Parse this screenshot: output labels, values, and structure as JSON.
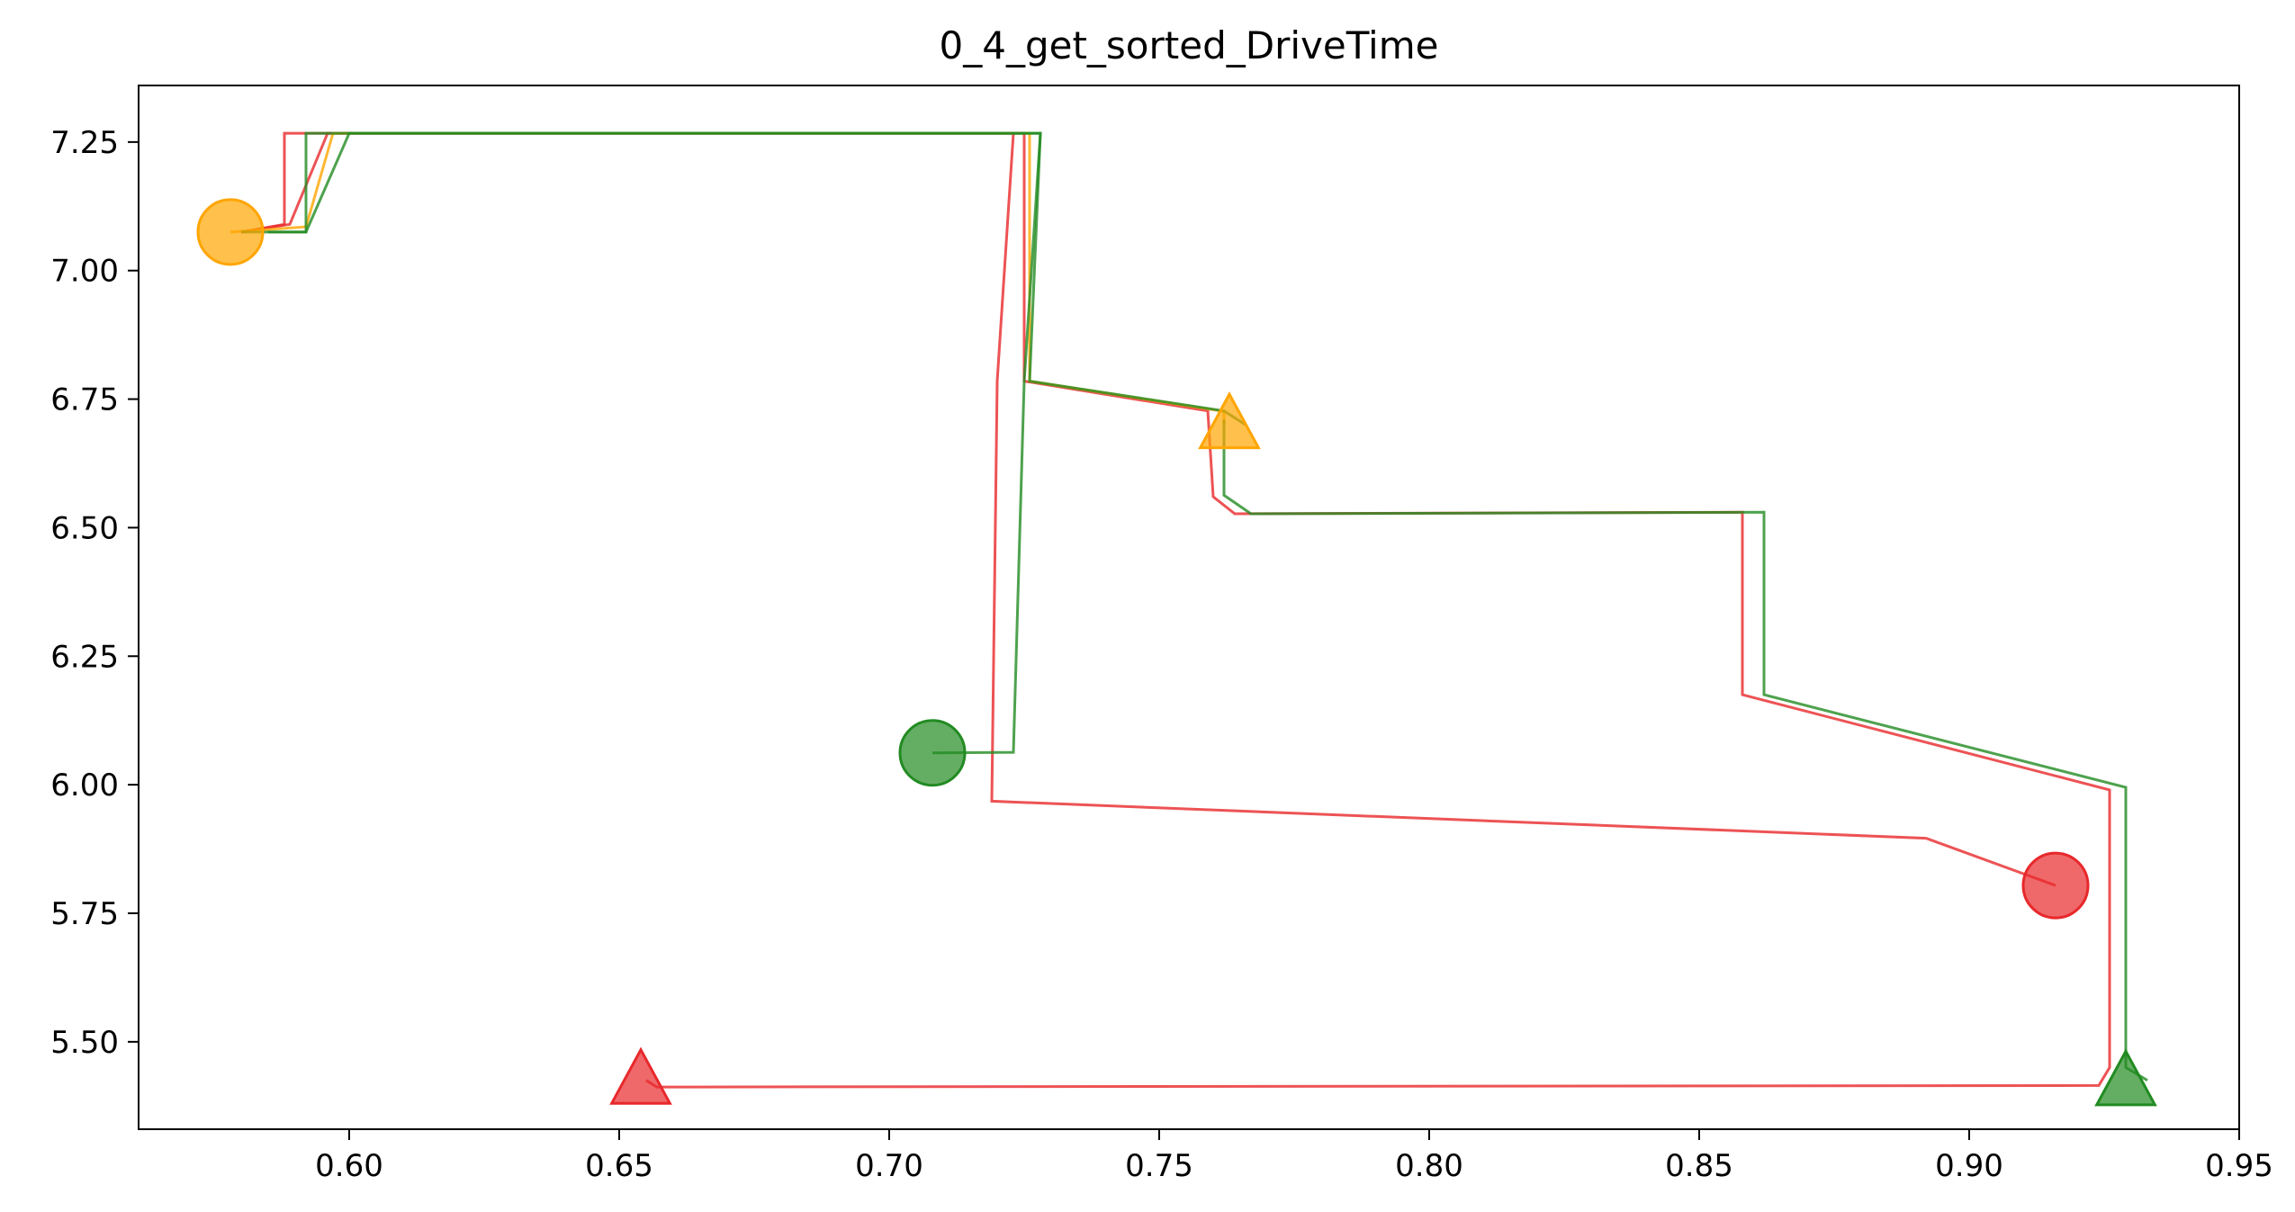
{
  "chart_data": {
    "type": "line",
    "title": "0_4_get_sorted_DriveTime",
    "xlabel": "",
    "ylabel": "",
    "xlim": [
      0.561,
      0.95
    ],
    "ylim": [
      5.33,
      7.36
    ],
    "grid": false,
    "legend": "none",
    "x_ticks": [
      0.6,
      0.65,
      0.7,
      0.75,
      0.8,
      0.85,
      0.9,
      0.95
    ],
    "x_tick_labels": [
      "0.60",
      "0.65",
      "0.70",
      "0.75",
      "0.80",
      "0.85",
      "0.90",
      "0.95"
    ],
    "y_ticks": [
      5.5,
      5.75,
      6.0,
      6.25,
      6.5,
      6.75,
      7.0,
      7.25
    ],
    "y_tick_labels": [
      "5.50",
      "5.75",
      "6.00",
      "6.25",
      "6.50",
      "6.75",
      "7.00",
      "7.25"
    ],
    "series": [
      {
        "color": "#e8282b",
        "points": [
          [
            0.916,
            5.804
          ],
          [
            0.892,
            5.896
          ],
          [
            0.719,
            5.968
          ],
          [
            0.72,
            6.785
          ],
          [
            0.723,
            7.267
          ],
          [
            0.588,
            7.267
          ],
          [
            0.588,
            7.09
          ],
          [
            0.58,
            7.075
          ]
        ]
      },
      {
        "color": "#e8282b",
        "points": [
          [
            0.58,
            7.075
          ],
          [
            0.589,
            7.09
          ],
          [
            0.596,
            7.267
          ],
          [
            0.725,
            7.267
          ],
          [
            0.725,
            6.785
          ],
          [
            0.759,
            6.727
          ],
          [
            0.76,
            6.56
          ],
          [
            0.764,
            6.527
          ],
          [
            0.858,
            6.53
          ],
          [
            0.858,
            6.175
          ],
          [
            0.926,
            5.99
          ],
          [
            0.926,
            5.45
          ],
          [
            0.924,
            5.415
          ],
          [
            0.657,
            5.412
          ],
          [
            0.655,
            5.425
          ]
        ]
      },
      {
        "color": "#ffa500",
        "points": [
          [
            0.578,
            7.075
          ],
          [
            0.592,
            7.085
          ],
          [
            0.597,
            7.267
          ],
          [
            0.726,
            7.267
          ],
          [
            0.726,
            6.785
          ],
          [
            0.762,
            6.726
          ],
          [
            0.762,
            6.7
          ]
        ]
      },
      {
        "color": "#228b22",
        "points": [
          [
            0.708,
            6.062
          ],
          [
            0.723,
            6.063
          ],
          [
            0.725,
            6.785
          ],
          [
            0.728,
            7.267
          ],
          [
            0.592,
            7.267
          ],
          [
            0.592,
            7.075
          ],
          [
            0.585,
            7.075
          ]
        ]
      },
      {
        "color": "#228b22",
        "points": [
          [
            0.58,
            7.075
          ],
          [
            0.592,
            7.075
          ],
          [
            0.6,
            7.267
          ],
          [
            0.728,
            7.267
          ],
          [
            0.726,
            6.785
          ],
          [
            0.762,
            6.727
          ],
          [
            0.766,
            6.7
          ]
        ]
      },
      {
        "color": "#228b22",
        "points": [
          [
            0.762,
            6.71
          ],
          [
            0.762,
            6.563
          ],
          [
            0.767,
            6.527
          ],
          [
            0.862,
            6.53
          ],
          [
            0.862,
            6.175
          ],
          [
            0.929,
            5.995
          ],
          [
            0.929,
            5.45
          ],
          [
            0.933,
            5.425
          ]
        ]
      }
    ],
    "markers": [
      {
        "shape": "circle",
        "color": "#ffa500",
        "x": 0.578,
        "y": 7.075
      },
      {
        "shape": "circle",
        "color": "#228b22",
        "x": 0.708,
        "y": 6.062
      },
      {
        "shape": "circle",
        "color": "#e8282b",
        "x": 0.916,
        "y": 5.804
      },
      {
        "shape": "triangle",
        "color": "#ffa500",
        "x": 0.763,
        "y": 6.7
      },
      {
        "shape": "triangle",
        "color": "#e8282b",
        "x": 0.654,
        "y": 5.425
      },
      {
        "shape": "triangle",
        "color": "#228b22",
        "x": 0.929,
        "y": 5.422
      }
    ]
  }
}
